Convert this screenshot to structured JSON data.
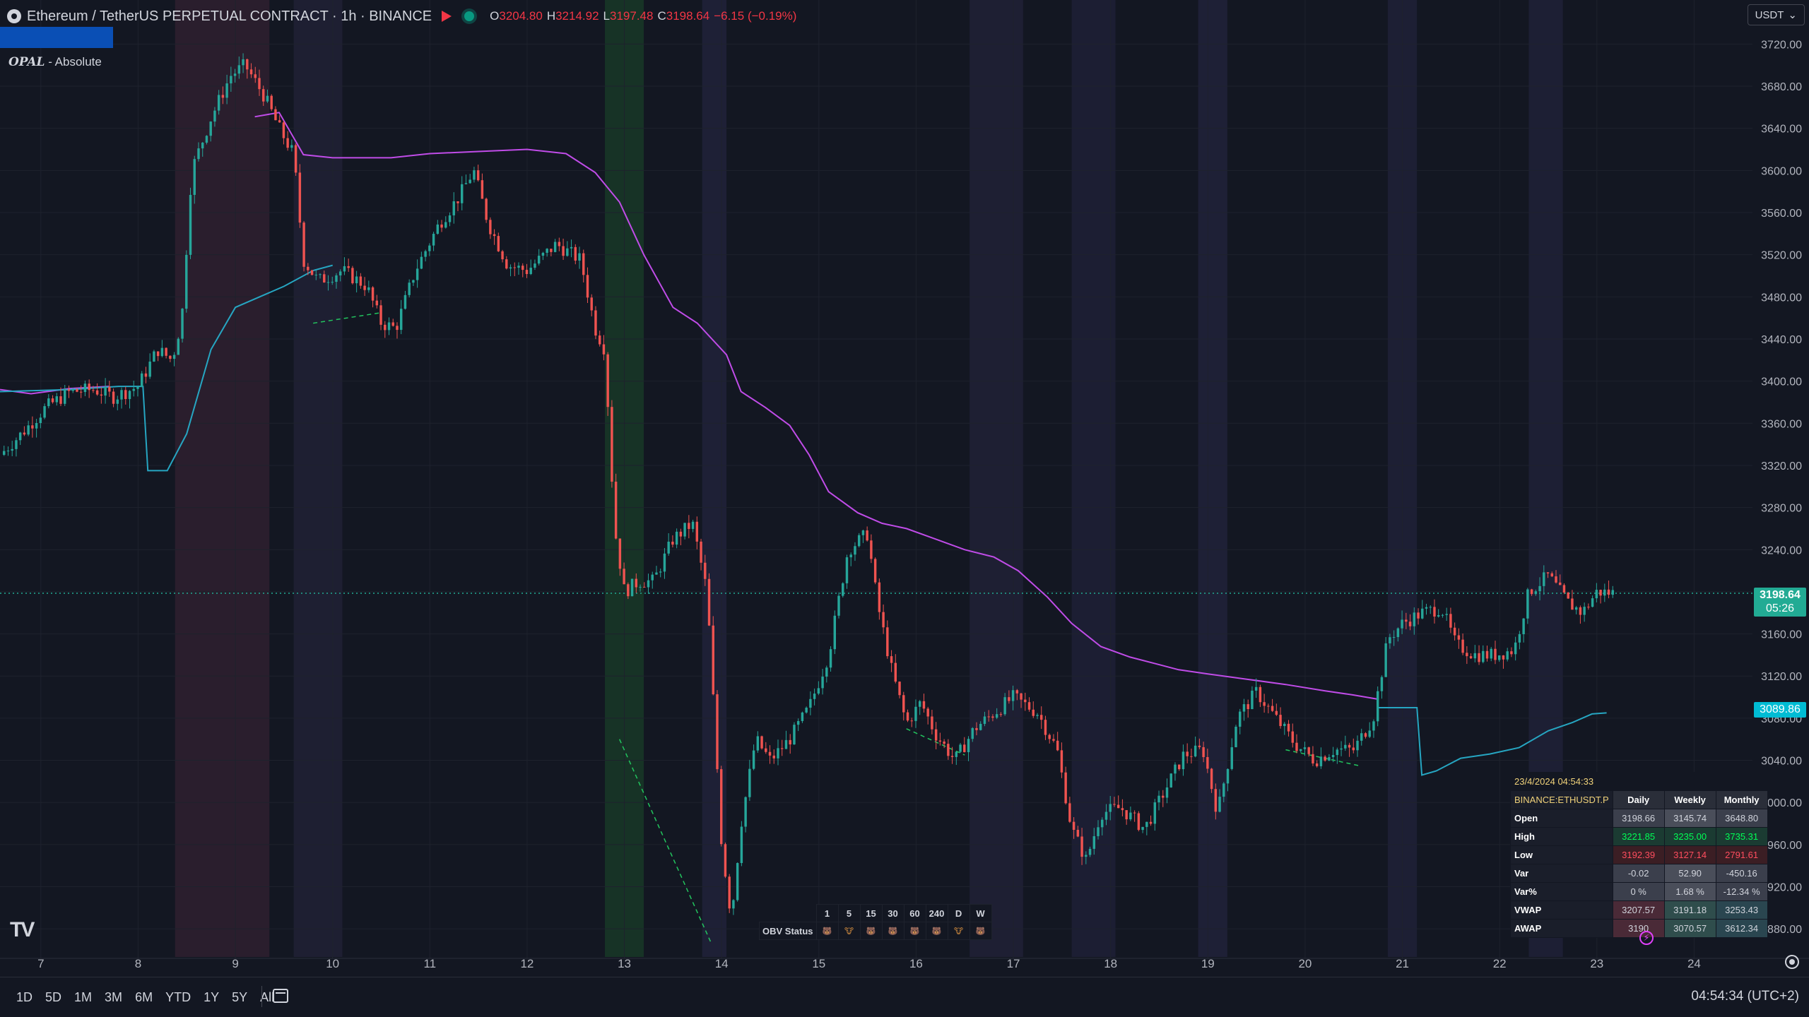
{
  "header": {
    "symbol_title": "Ethereum / TetherUS PERPETUAL CONTRACT · 1h · BINANCE",
    "ohlc": [
      {
        "k": "O",
        "v": "3204.80"
      },
      {
        "k": "H",
        "v": "3214.92"
      },
      {
        "k": "L",
        "v": "3197.48"
      },
      {
        "k": "C",
        "v": "3198.64"
      }
    ],
    "change": "−6.15 (−0.19%)",
    "indicator_name": "OPAL",
    "indicator_mode": " - Absolute",
    "currency": "USDT"
  },
  "price_tags": {
    "current_price": "3198.64",
    "countdown": "05:26",
    "vwap_price": "3089.86"
  },
  "bottom_bar": {
    "ranges": [
      "1D",
      "5D",
      "1M",
      "3M",
      "6M",
      "YTD",
      "1Y",
      "5Y",
      "All"
    ],
    "clock": "04:54:34 (UTC+2)"
  },
  "obv_table": {
    "label": "OBV Status",
    "timeframes": [
      "1",
      "5",
      "15",
      "30",
      "60",
      "240",
      "D",
      "W"
    ],
    "statuses": [
      "🐻",
      "🐮",
      "🐻",
      "🐻",
      "🐻",
      "🐻",
      "🐮",
      "🐻"
    ]
  },
  "levels_table": {
    "datetime": "23/4/2024     04:54:33",
    "symbol": "BINANCE:ETHUSDT.P",
    "columns": [
      "Daily",
      "Weekly",
      "Monthly"
    ],
    "rows": [
      {
        "label": "Open",
        "values": [
          "3198.66",
          "3145.74",
          "3648.80"
        ],
        "styles": [
          "neutral",
          "neutral2",
          "neutral"
        ]
      },
      {
        "label": "High",
        "values": [
          "3221.85",
          "3235.00",
          "3735.31"
        ],
        "styles": [
          "green",
          "green",
          "green"
        ]
      },
      {
        "label": "Low",
        "values": [
          "3192.39",
          "3127.14",
          "2791.61"
        ],
        "styles": [
          "red",
          "red",
          "red"
        ]
      },
      {
        "label": "Var",
        "values": [
          "-0.02",
          "52.90",
          "-450.16"
        ],
        "styles": [
          "neutral",
          "neutral2",
          "neutral"
        ]
      },
      {
        "label": "Var%",
        "values": [
          "0 %",
          "1.68 %",
          "-12.34 %"
        ],
        "styles": [
          "neutral",
          "neutral2",
          "neutral"
        ]
      },
      {
        "label": "VWAP",
        "values": [
          "3207.57",
          "3191.18",
          "3253.43"
        ],
        "styles": [
          "mono-d",
          "mono-w",
          "mono-m"
        ]
      },
      {
        "label": "AWAP",
        "values": [
          "3190",
          "3070.57",
          "3612.34"
        ],
        "styles": [
          "mono-d",
          "mono-w",
          "mono-m"
        ]
      }
    ]
  },
  "colors": {
    "background": "#131722",
    "up": "#26a69a",
    "down": "#ef5350",
    "purple_line": "#c04ce8",
    "cyan_line": "#26a6c2"
  },
  "chart_data": {
    "type": "candlestick",
    "ylim": [
      2860,
      3735
    ],
    "y_ticks": [
      2880,
      2920,
      2960,
      3000,
      3040,
      3080,
      3120,
      3160,
      3200,
      3240,
      3280,
      3320,
      3360,
      3400,
      3440,
      3480,
      3520,
      3560,
      3600,
      3640,
      3680,
      3720
    ],
    "x_range_days": [
      6.58,
      24.6
    ],
    "x_tick_labels": [
      "7",
      "8",
      "9",
      "10",
      "11",
      "12",
      "13",
      "14",
      "15",
      "16",
      "17",
      "18",
      "19",
      "20",
      "21",
      "22",
      "23",
      "24"
    ],
    "x_tick_days": [
      7,
      8,
      9,
      10,
      11,
      12,
      13,
      14,
      15,
      16,
      17,
      18,
      19,
      20,
      21,
      22,
      23,
      24
    ],
    "current_price": 3198.64,
    "price_path": [
      [
        6.58,
        3330
      ],
      [
        6.8,
        3350
      ],
      [
        7.05,
        3375
      ],
      [
        7.3,
        3390
      ],
      [
        7.55,
        3392
      ],
      [
        7.75,
        3385
      ],
      [
        8.0,
        3395
      ],
      [
        8.2,
        3430
      ],
      [
        8.35,
        3420
      ],
      [
        8.45,
        3460
      ],
      [
        8.55,
        3600
      ],
      [
        8.75,
        3650
      ],
      [
        8.95,
        3690
      ],
      [
        9.1,
        3700
      ],
      [
        9.3,
        3670
      ],
      [
        9.45,
        3640
      ],
      [
        9.6,
        3615
      ],
      [
        9.7,
        3515
      ],
      [
        9.85,
        3495
      ],
      [
        10.1,
        3505
      ],
      [
        10.35,
        3490
      ],
      [
        10.5,
        3455
      ],
      [
        10.65,
        3450
      ],
      [
        10.85,
        3505
      ],
      [
        11.1,
        3550
      ],
      [
        11.3,
        3575
      ],
      [
        11.45,
        3600
      ],
      [
        11.6,
        3550
      ],
      [
        11.8,
        3510
      ],
      [
        12.0,
        3505
      ],
      [
        12.3,
        3530
      ],
      [
        12.55,
        3515
      ],
      [
        12.7,
        3450
      ],
      [
        12.8,
        3430
      ],
      [
        12.9,
        3260
      ],
      [
        13.0,
        3200
      ],
      [
        13.15,
        3210
      ],
      [
        13.3,
        3210
      ],
      [
        13.5,
        3250
      ],
      [
        13.7,
        3265
      ],
      [
        13.85,
        3200
      ],
      [
        14.0,
        2960
      ],
      [
        14.1,
        2890
      ],
      [
        14.2,
        2980
      ],
      [
        14.35,
        3060
      ],
      [
        14.5,
        3040
      ],
      [
        14.7,
        3060
      ],
      [
        14.9,
        3090
      ],
      [
        15.1,
        3140
      ],
      [
        15.3,
        3240
      ],
      [
        15.5,
        3255
      ],
      [
        15.6,
        3190
      ],
      [
        15.75,
        3125
      ],
      [
        15.9,
        3075
      ],
      [
        16.05,
        3095
      ],
      [
        16.2,
        3065
      ],
      [
        16.4,
        3040
      ],
      [
        16.6,
        3070
      ],
      [
        16.8,
        3085
      ],
      [
        17.0,
        3100
      ],
      [
        17.25,
        3085
      ],
      [
        17.45,
        3050
      ],
      [
        17.6,
        2975
      ],
      [
        17.75,
        2945
      ],
      [
        17.9,
        2990
      ],
      [
        18.1,
        2995
      ],
      [
        18.35,
        2975
      ],
      [
        18.55,
        3010
      ],
      [
        18.75,
        3045
      ],
      [
        18.95,
        3050
      ],
      [
        19.1,
        2990
      ],
      [
        19.3,
        3080
      ],
      [
        19.5,
        3105
      ],
      [
        19.7,
        3080
      ],
      [
        19.9,
        3055
      ],
      [
        20.1,
        3040
      ],
      [
        20.3,
        3050
      ],
      [
        20.5,
        3050
      ],
      [
        20.7,
        3080
      ],
      [
        20.85,
        3155
      ],
      [
        21.0,
        3170
      ],
      [
        21.2,
        3180
      ],
      [
        21.4,
        3185
      ],
      [
        21.55,
        3150
      ],
      [
        21.75,
        3140
      ],
      [
        21.95,
        3140
      ],
      [
        22.15,
        3145
      ],
      [
        22.3,
        3200
      ],
      [
        22.5,
        3215
      ],
      [
        22.7,
        3190
      ],
      [
        22.85,
        3180
      ],
      [
        23.0,
        3200
      ],
      [
        23.2,
        3198.64
      ]
    ],
    "purple_path": [
      [
        6.58,
        3392
      ],
      [
        6.9,
        3388
      ],
      [
        7.3,
        3393
      ],
      [
        7.7,
        3395
      ],
      [
        9.2,
        3651
      ],
      [
        9.45,
        3655
      ],
      [
        9.7,
        3615
      ],
      [
        10.0,
        3612
      ],
      [
        10.6,
        3612
      ],
      [
        11.0,
        3616
      ],
      [
        11.5,
        3618
      ],
      [
        12.0,
        3620
      ],
      [
        12.4,
        3616
      ],
      [
        12.7,
        3598
      ],
      [
        12.95,
        3570
      ],
      [
        13.2,
        3520
      ],
      [
        13.5,
        3470
      ],
      [
        13.75,
        3455
      ],
      [
        14.05,
        3425
      ],
      [
        14.2,
        3390
      ],
      [
        14.45,
        3375
      ],
      [
        14.7,
        3358
      ],
      [
        14.9,
        3330
      ],
      [
        15.1,
        3295
      ],
      [
        15.4,
        3275
      ],
      [
        15.65,
        3265
      ],
      [
        15.9,
        3260
      ],
      [
        16.2,
        3250
      ],
      [
        16.5,
        3240
      ],
      [
        16.8,
        3233
      ],
      [
        17.05,
        3220
      ],
      [
        17.35,
        3195
      ],
      [
        17.6,
        3170
      ],
      [
        17.9,
        3148
      ],
      [
        18.2,
        3138
      ],
      [
        18.45,
        3132
      ],
      [
        18.7,
        3126
      ],
      [
        19.0,
        3122
      ],
      [
        19.4,
        3117
      ],
      [
        19.8,
        3112
      ],
      [
        20.2,
        3106
      ],
      [
        20.5,
        3102
      ],
      [
        20.75,
        3098
      ]
    ],
    "cyan_path": [
      [
        6.58,
        3390
      ],
      [
        7.3,
        3392
      ],
      [
        7.8,
        3395
      ],
      [
        8.05,
        3395
      ],
      [
        8.1,
        3315
      ],
      [
        8.3,
        3315
      ],
      [
        8.5,
        3350
      ],
      [
        8.75,
        3430
      ],
      [
        9.0,
        3470
      ],
      [
        9.5,
        3490
      ],
      [
        9.8,
        3505
      ],
      [
        10.0,
        3510
      ],
      [
        20.75,
        3090
      ],
      [
        21.15,
        3090
      ],
      [
        21.2,
        3026
      ],
      [
        21.35,
        3030
      ],
      [
        21.6,
        3042
      ],
      [
        21.9,
        3046
      ],
      [
        22.2,
        3052
      ],
      [
        22.5,
        3068
      ],
      [
        22.75,
        3076
      ],
      [
        22.95,
        3084
      ],
      [
        23.1,
        3085
      ]
    ],
    "dashed_divergences": [
      [
        [
          9.8,
          3455
        ],
        [
          10.5,
          3465
        ]
      ],
      [
        [
          12.95,
          3060
        ],
        [
          13.9,
          2865
        ]
      ],
      [
        [
          15.9,
          3070
        ],
        [
          16.5,
          3045
        ]
      ],
      [
        [
          19.8,
          3050
        ],
        [
          20.55,
          3035
        ]
      ]
    ],
    "session_bands": [
      [
        8.38,
        9.35,
        "#2a1e2d"
      ],
      [
        9.6,
        10.1,
        "#1e1f32"
      ],
      [
        12.8,
        13.2,
        "#173326"
      ],
      [
        13.8,
        14.05,
        "#1e2036"
      ],
      [
        16.55,
        17.1,
        "#1e1f33"
      ],
      [
        17.6,
        18.05,
        "#1c1e33"
      ],
      [
        18.9,
        19.2,
        "#1e2036"
      ],
      [
        20.85,
        21.15,
        "#1d1f34"
      ],
      [
        22.3,
        22.65,
        "#1d1f34"
      ]
    ]
  }
}
